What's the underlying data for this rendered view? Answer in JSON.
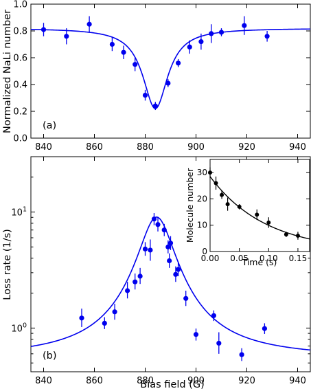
{
  "colors": {
    "data": "#0000ee",
    "fit": "#0000ee",
    "inset": "#000000",
    "axes": "#000000"
  },
  "chart_data": [
    {
      "type": "scatter",
      "panel_label": "(a)",
      "xlabel": "",
      "ylabel": "Normalized NaLi number",
      "xlim": [
        835,
        945
      ],
      "ylim": [
        0.0,
        1.0
      ],
      "xticks": [
        "840",
        "860",
        "880",
        "900",
        "920",
        "940"
      ],
      "yticks": [
        "0.0",
        "0.2",
        "0.4",
        "0.6",
        "0.8",
        "1.0"
      ],
      "grid": false,
      "points": [
        {
          "x": 840.0,
          "y": 0.81,
          "err": 0.05
        },
        {
          "x": 849.0,
          "y": 0.76,
          "err": 0.06
        },
        {
          "x": 858.0,
          "y": 0.85,
          "err": 0.06
        },
        {
          "x": 867.0,
          "y": 0.7,
          "err": 0.05
        },
        {
          "x": 871.5,
          "y": 0.64,
          "err": 0.05
        },
        {
          "x": 876.0,
          "y": 0.55,
          "err": 0.05
        },
        {
          "x": 880.0,
          "y": 0.32,
          "err": 0.04
        },
        {
          "x": 884.0,
          "y": 0.24,
          "err": 0.03
        },
        {
          "x": 889.0,
          "y": 0.41,
          "err": 0.03
        },
        {
          "x": 893.0,
          "y": 0.56,
          "err": 0.03
        },
        {
          "x": 897.5,
          "y": 0.68,
          "err": 0.05
        },
        {
          "x": 902.0,
          "y": 0.72,
          "err": 0.06
        },
        {
          "x": 906.0,
          "y": 0.78,
          "err": 0.07
        },
        {
          "x": 910.0,
          "y": 0.79,
          "err": 0.03
        },
        {
          "x": 919.0,
          "y": 0.84,
          "err": 0.07
        },
        {
          "x": 928.0,
          "y": 0.76,
          "err": 0.04
        }
      ],
      "fit": {
        "model": "lorentzian_dip",
        "baseline": 0.82,
        "depth": 0.6,
        "center": 884.0,
        "hwhm": 6.0
      }
    },
    {
      "type": "scatter",
      "panel_label": "(b)",
      "xlabel": "Bias field (G)",
      "ylabel": "Loss rate (1/s)",
      "xlim": [
        835,
        945
      ],
      "ylim": [
        0.42,
        30
      ],
      "yscale": "log",
      "xticks": [
        "840",
        "860",
        "880",
        "900",
        "920",
        "940"
      ],
      "yticks": [
        {
          "value": 1,
          "base": "10",
          "exp": "0"
        },
        {
          "value": 10,
          "base": "10",
          "exp": "1"
        }
      ],
      "grid": false,
      "points": [
        {
          "x": 855.0,
          "y": 1.22,
          "lo": 1.02,
          "hi": 1.47
        },
        {
          "x": 864.0,
          "y": 1.1,
          "lo": 0.98,
          "hi": 1.24
        },
        {
          "x": 868.0,
          "y": 1.38,
          "lo": 1.18,
          "hi": 1.62
        },
        {
          "x": 873.0,
          "y": 2.1,
          "lo": 1.8,
          "hi": 2.5
        },
        {
          "x": 876.0,
          "y": 2.5,
          "lo": 2.15,
          "hi": 2.95
        },
        {
          "x": 878.0,
          "y": 2.8,
          "lo": 2.4,
          "hi": 3.3
        },
        {
          "x": 880.0,
          "y": 4.8,
          "lo": 4.2,
          "hi": 5.5
        },
        {
          "x": 882.0,
          "y": 4.7,
          "lo": 3.8,
          "hi": 5.8
        },
        {
          "x": 883.5,
          "y": 8.7,
          "lo": 7.7,
          "hi": 9.8
        },
        {
          "x": 885.0,
          "y": 7.8,
          "lo": 6.8,
          "hi": 9.0
        },
        {
          "x": 887.5,
          "y": 7.0,
          "lo": 6.2,
          "hi": 7.9
        },
        {
          "x": 889.0,
          "y": 5.0,
          "lo": 4.4,
          "hi": 5.7
        },
        {
          "x": 889.5,
          "y": 3.8,
          "lo": 3.3,
          "hi": 4.4
        },
        {
          "x": 890.0,
          "y": 5.4,
          "lo": 4.7,
          "hi": 6.2
        },
        {
          "x": 892.0,
          "y": 2.9,
          "lo": 2.5,
          "hi": 3.4
        },
        {
          "x": 893.0,
          "y": 3.2,
          "lo": 2.8,
          "hi": 3.65
        },
        {
          "x": 896.0,
          "y": 1.8,
          "lo": 1.55,
          "hi": 2.1
        },
        {
          "x": 900.0,
          "y": 0.88,
          "lo": 0.78,
          "hi": 0.99
        },
        {
          "x": 907.0,
          "y": 1.28,
          "lo": 1.15,
          "hi": 1.42
        },
        {
          "x": 909.0,
          "y": 0.74,
          "lo": 0.6,
          "hi": 0.92
        },
        {
          "x": 918.0,
          "y": 0.59,
          "lo": 0.52,
          "hi": 0.67
        },
        {
          "x": 927.0,
          "y": 0.99,
          "lo": 0.89,
          "hi": 1.1
        }
      ],
      "fit": {
        "model": "lorentzian_peak",
        "background": 0.55,
        "amplitude": 8.5,
        "center": 884.5,
        "hwhm": 6.5
      }
    },
    {
      "type": "scatter",
      "role": "inset",
      "xlabel": "Time (s)",
      "ylabel": "Molecule number",
      "xlim": [
        0.0,
        0.17
      ],
      "ylim": [
        0,
        35
      ],
      "xticks": [
        "0.00",
        "0.05",
        "0.10",
        "0.15"
      ],
      "yticks": [
        "0",
        "10",
        "20",
        "30"
      ],
      "grid": false,
      "points": [
        {
          "x": 0.0,
          "y": 30.0,
          "err": 2.0
        },
        {
          "x": 0.01,
          "y": 26.0,
          "err": 2.5
        },
        {
          "x": 0.02,
          "y": 21.5,
          "err": 1.5
        },
        {
          "x": 0.03,
          "y": 18.0,
          "err": 2.5
        },
        {
          "x": 0.05,
          "y": 17.0,
          "err": 1.0
        },
        {
          "x": 0.08,
          "y": 14.0,
          "err": 2.0
        },
        {
          "x": 0.1,
          "y": 11.0,
          "err": 2.0
        },
        {
          "x": 0.13,
          "y": 6.5,
          "err": 1.0
        },
        {
          "x": 0.15,
          "y": 6.0,
          "err": 1.5
        }
      ],
      "fit": {
        "model": "exponential_decay",
        "n0": 28.5,
        "tau": 0.095
      }
    }
  ]
}
